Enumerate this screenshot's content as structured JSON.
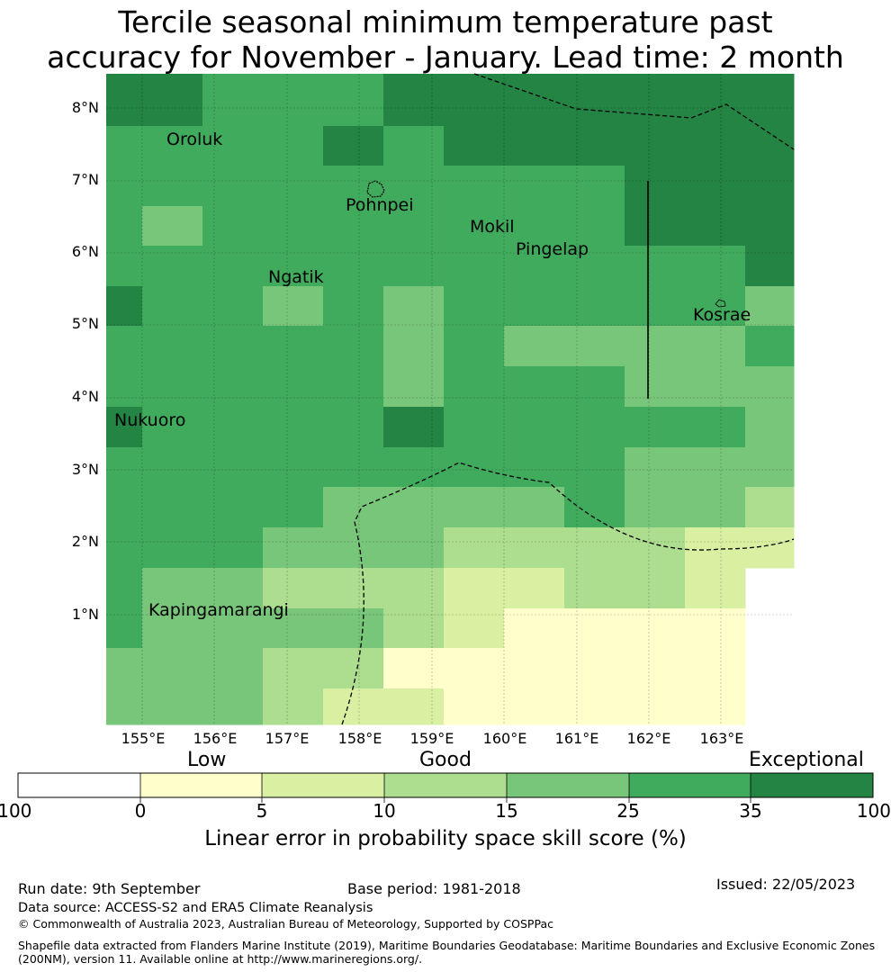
{
  "title": {
    "line1": "Tercile seasonal minimum temperature past",
    "line2": "accuracy for November - January. Lead time: 2 month"
  },
  "map": {
    "lat_labels": [
      "8°N",
      "7°N",
      "6°N",
      "5°N",
      "4°N",
      "3°N",
      "2°N",
      "1°N"
    ],
    "lon_labels": [
      "155°E",
      "156°E",
      "157°E",
      "158°E",
      "159°E",
      "160°E",
      "161°E",
      "162°E",
      "163°E"
    ],
    "places": [
      "Oroluk",
      "Pohnpei",
      "Mokil",
      "Pingelap",
      "Ngatik",
      "Kosrae",
      "Nukuoro",
      "Kapingamarangi"
    ],
    "colors": {
      "0": "#ffffcc",
      "5": "#d9f0a3",
      "10": "#addd8e",
      "15": "#78c679",
      "25": "#41ab5d",
      "35": "#238443",
      "-100": "#ffffff"
    }
  },
  "colorbar": {
    "categories": [
      "Low",
      "Good",
      "Exceptional"
    ],
    "ticks": [
      "-100",
      "0",
      "5",
      "10",
      "15",
      "25",
      "35",
      "100"
    ],
    "colors": [
      "#ffffff",
      "#ffffcc",
      "#d9f0a3",
      "#addd8e",
      "#78c679",
      "#41ab5d",
      "#238443"
    ],
    "title": "Linear error in probability space skill score (%)"
  },
  "footer": {
    "run_date": "Run date: 9th September",
    "base_period": "Base period: 1981-2018",
    "issued": "Issued: 22/05/2023",
    "data_source": "Data source: ACCESS-S2 and ERA5 Climate Reanalysis",
    "copyright": "© Commonwealth of Australia 2023, Australian Bureau of Meteorology, Supported by COSPPac",
    "shapefile_line1": "Shapefile data extracted from Flanders Marine Institute (2019), Maritime Boundaries Geodatabase: Maritime Boundaries and Exclusive Economic Zones",
    "shapefile_line2": "(200NM), version 11. Available online at http://www.marineregions.org/."
  }
}
